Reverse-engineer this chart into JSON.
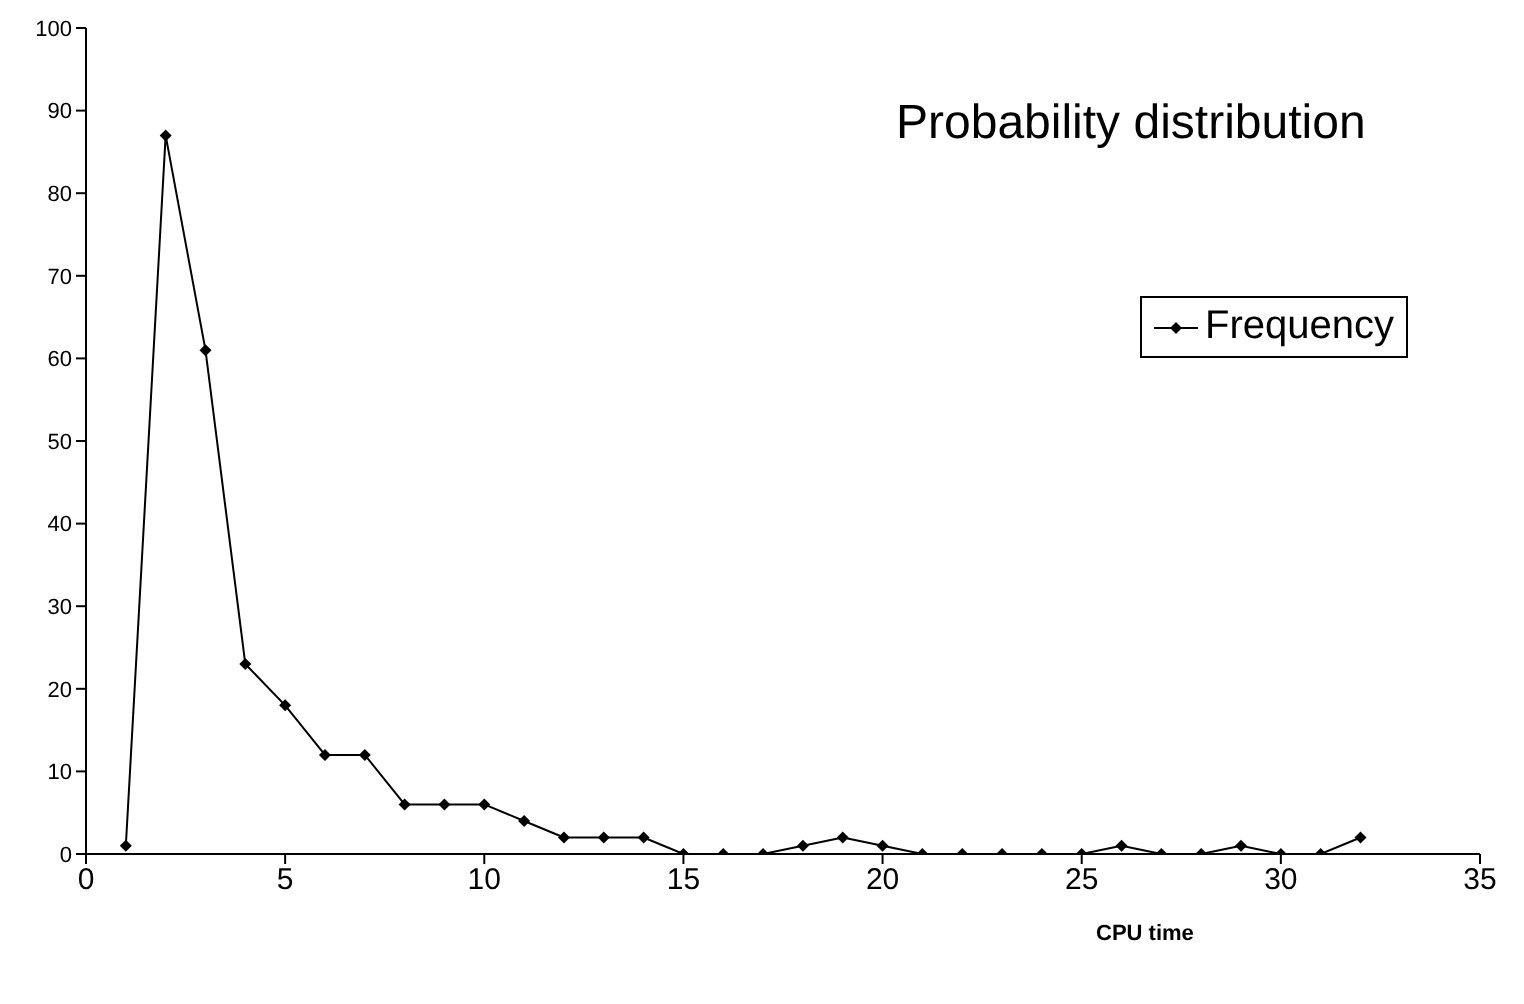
{
  "chart_data": {
    "type": "line",
    "title": "Probability distribution",
    "xlabel": "CPU time",
    "x": [
      1,
      2,
      3,
      4,
      5,
      6,
      7,
      8,
      9,
      10,
      11,
      12,
      13,
      14,
      15,
      16,
      17,
      18,
      19,
      20,
      21,
      22,
      23,
      24,
      25,
      26,
      27,
      28,
      29,
      30,
      31,
      32
    ],
    "series": [
      {
        "name": "Frequency",
        "color": "#000000",
        "values": [
          1,
          87,
          61,
          23,
          18,
          12,
          12,
          6,
          6,
          6,
          4,
          2,
          2,
          2,
          0,
          0,
          0,
          1,
          2,
          1,
          0,
          0,
          0,
          0,
          0,
          1,
          0,
          0,
          1,
          0,
          0,
          2
        ]
      }
    ],
    "xlim": [
      0,
      35
    ],
    "xticks": [
      0,
      5,
      10,
      15,
      20,
      25,
      30,
      35
    ],
    "ylim": [
      0,
      100
    ],
    "yticks": [
      0,
      10,
      20,
      30,
      40,
      50,
      60,
      70,
      80,
      90,
      100
    ],
    "grid": false,
    "legend": "top right",
    "marker": "diamond",
    "line_style": "solid"
  }
}
